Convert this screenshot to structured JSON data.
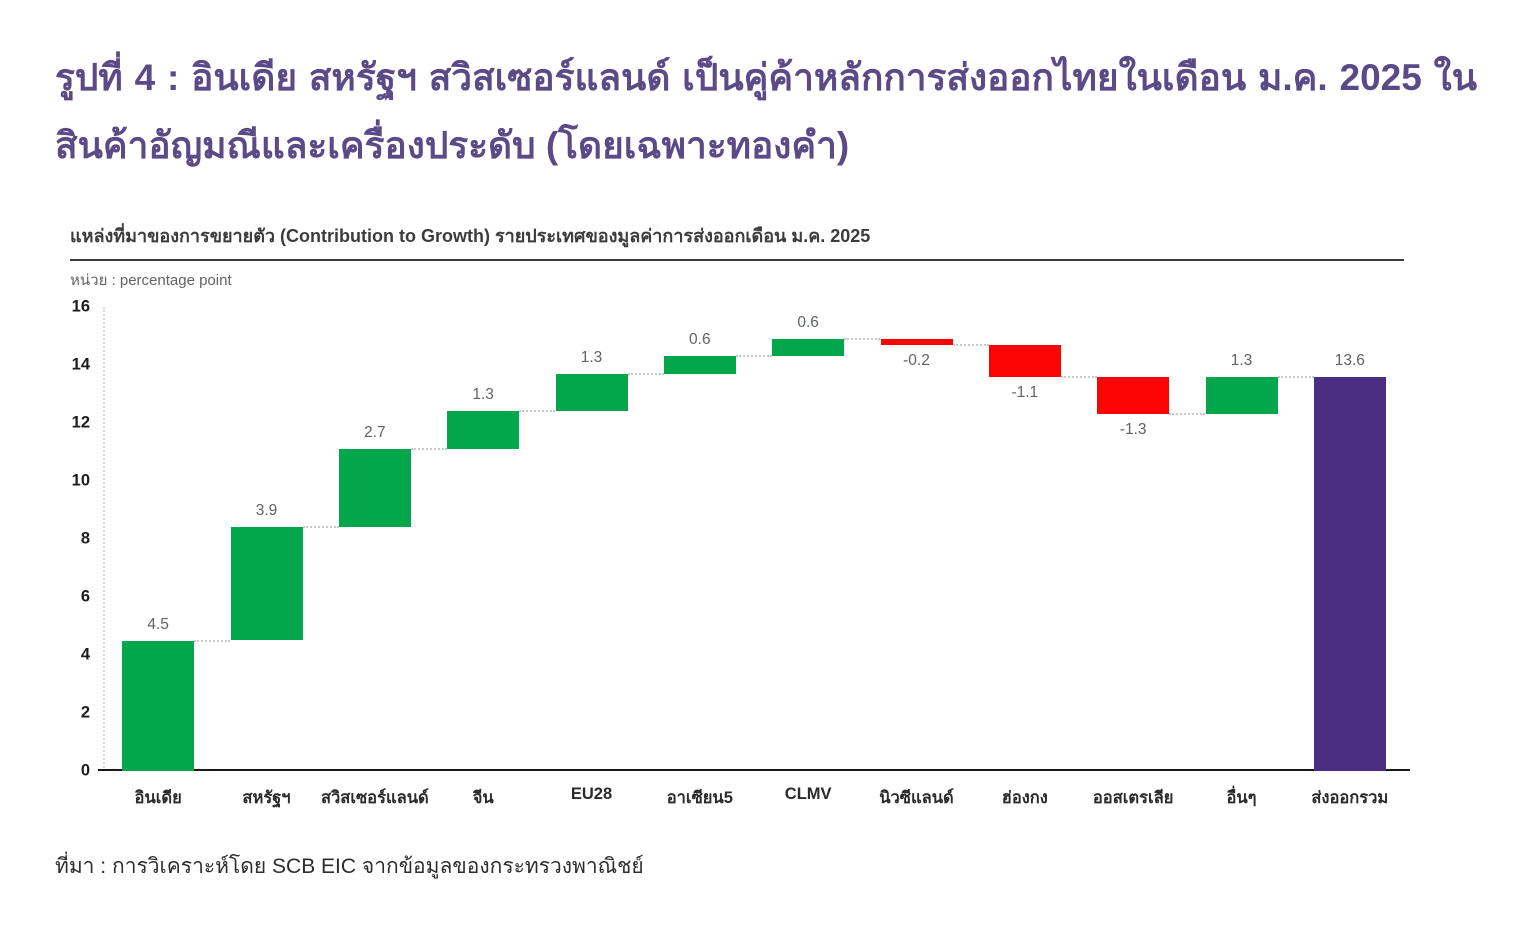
{
  "title": "รูปที่ 4 : อินเดีย สหรัฐฯ สวิสเซอร์แลนด์ เป็นคู่ค้าหลักการส่งออกไทยในเดือน ม.ค. 2025 ในสินค้าอัญมณีและเครื่องประดับ (โดยเฉพาะทองคำ)",
  "chart_header": {
    "title": "แหล่งที่มาของการขยายตัว (Contribution to Growth) รายประเทศของมูลค่าการส่งออกเดือน ม.ค. 2025",
    "unit_label": "หน่วย : percentage point"
  },
  "source": "ที่มา : การวิเคราะห์โดย SCB EIC จากข้อมูลของกระทรวงพาณิชย์",
  "theme": {
    "title_color": "#5a4a87",
    "increase_color": "#04a64c",
    "decrease_color": "#fc0404",
    "total_color": "#4b2d82",
    "connector_color": "#c8c8c8"
  },
  "chart_data": {
    "type": "bar",
    "subtype": "waterfall",
    "title": "แหล่งที่มาของการขยายตัว (Contribution to Growth) รายประเทศของมูลค่าการส่งออกเดือน ม.ค. 2025",
    "unit": "percentage point",
    "categories": [
      "อินเดีย",
      "สหรัฐฯ",
      "สวิสเซอร์แลนด์",
      "จีน",
      "EU28",
      "อาเซียน5",
      "CLMV",
      "นิวซีแลนด์",
      "ฮ่องกง",
      "ออสเตรเลีย",
      "อื่นๆ",
      "ส่งออกรวม"
    ],
    "values": [
      4.5,
      3.9,
      2.7,
      1.3,
      1.3,
      0.6,
      0.6,
      -0.2,
      -1.1,
      -1.3,
      1.3,
      13.6
    ],
    "bar_kinds": [
      "increase",
      "increase",
      "increase",
      "increase",
      "increase",
      "increase",
      "increase",
      "decrease",
      "decrease",
      "decrease",
      "increase",
      "total"
    ],
    "cumulative_levels": [
      4.5,
      8.4,
      11.1,
      12.4,
      13.7,
      14.3,
      14.9,
      14.7,
      13.6,
      12.3,
      13.6,
      13.6
    ],
    "data_labels": [
      "4.5",
      "3.9",
      "2.7",
      "1.3",
      "1.3",
      "0.6",
      "0.6",
      "-0.2",
      "-1.1",
      "-1.3",
      "1.3",
      "13.6"
    ],
    "ylim": [
      0,
      16
    ],
    "yticks": [
      0,
      2,
      4,
      6,
      8,
      10,
      12,
      14,
      16
    ],
    "xlabel": "",
    "ylabel": "percentage point",
    "grid": false,
    "legend": false,
    "colors": {
      "increase": "#04a64c",
      "decrease": "#fc0404",
      "total": "#4b2d82",
      "connector": "#c8c8c8"
    }
  }
}
